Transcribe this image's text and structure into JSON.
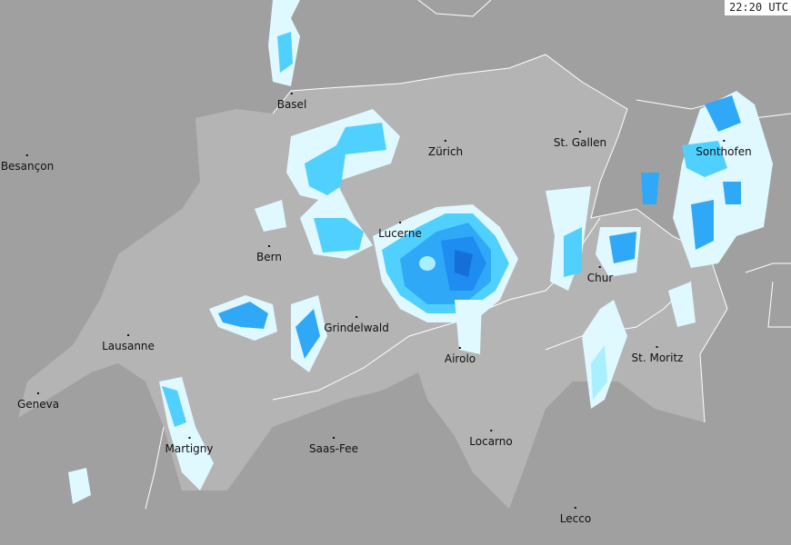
{
  "timestamp": "22:20 UTC",
  "colors": {
    "background": "#a0a0a0",
    "switzerland": "#b4b4b4",
    "border": "#ffffff",
    "rain_levels": [
      "#e0f8ff",
      "#a8f0ff",
      "#50d0ff",
      "#30a8f8",
      "#1e8cf0",
      "#1470d8"
    ]
  },
  "cities": [
    "Basel",
    "Besançon",
    "Zürich",
    "St. Gallen",
    "Sonthofen",
    "Lucerne",
    "Bern",
    "Chur",
    "Grindelwald",
    "Lausanne",
    "Airolo",
    "St. Moritz",
    "Geneva",
    "Martigny",
    "Saas-Fee",
    "Locarno",
    "Lecco"
  ]
}
